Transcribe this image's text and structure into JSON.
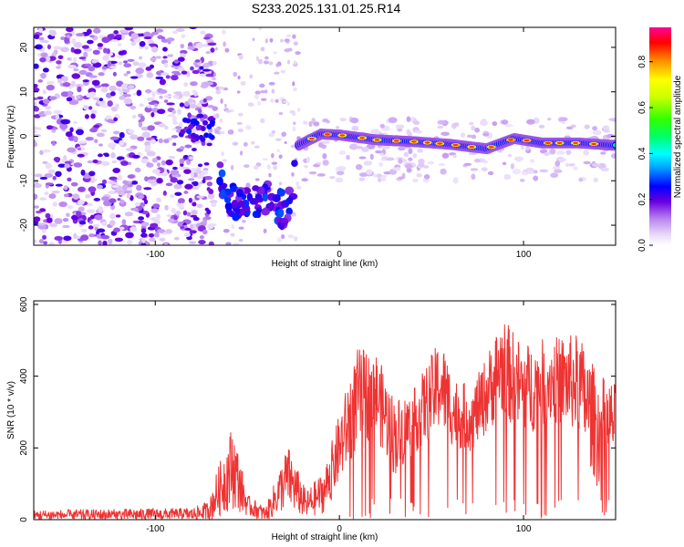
{
  "title": "S233.2025.131.01.25.R14",
  "colors": {
    "snr_line": "#ee3333",
    "frame": "#000000"
  },
  "chart_data": [
    {
      "type": "heatmap",
      "xlabel": "Height of straight line (km)",
      "ylabel": "Frequency (Hz)",
      "xlim": [
        -166,
        150
      ],
      "ylim": [
        -24.5,
        24.5
      ],
      "x_ticks": [
        -100,
        0,
        100
      ],
      "y_ticks": [
        -20,
        -10,
        0,
        10,
        20
      ],
      "colorbar": {
        "label": "Normalized spectral amplitude",
        "range": [
          0,
          0.95
        ],
        "ticks": [
          "0.0",
          "0.2",
          "0.4",
          "0.6",
          "0.8"
        ],
        "tick_values": [
          0.0,
          0.2,
          0.4,
          0.6,
          0.8
        ]
      },
      "ridge": [
        {
          "x": -82,
          "y": 1.0
        },
        {
          "x": -70,
          "y": 2.0
        },
        {
          "x": -64,
          "y": -12
        },
        {
          "x": -56,
          "y": -16
        },
        {
          "x": -47,
          "y": -14
        },
        {
          "x": -38,
          "y": -13
        },
        {
          "x": -28,
          "y": -18
        },
        {
          "x": -22,
          "y": -2
        },
        {
          "x": -10,
          "y": 0.5
        },
        {
          "x": 0,
          "y": 0.3
        },
        {
          "x": 20,
          "y": -0.8
        },
        {
          "x": 40,
          "y": -1.2
        },
        {
          "x": 60,
          "y": -1.8
        },
        {
          "x": 80,
          "y": -2.8
        },
        {
          "x": 95,
          "y": -0.5
        },
        {
          "x": 110,
          "y": -1.5
        },
        {
          "x": 130,
          "y": -1.5
        },
        {
          "x": 148,
          "y": -2.0
        }
      ]
    },
    {
      "type": "line",
      "xlabel": "Height of straight line (km)",
      "ylabel": "SNR (10 * v/v)",
      "xlim": [
        -166,
        150
      ],
      "ylim": [
        0,
        610
      ],
      "x_ticks": [
        -100,
        0,
        100
      ],
      "y_ticks": [
        0,
        200,
        400,
        600
      ],
      "envelope": [
        {
          "x": -166,
          "base": 12,
          "amp": 15
        },
        {
          "x": -80,
          "base": 15,
          "amp": 18
        },
        {
          "x": -72,
          "base": 20,
          "amp": 30
        },
        {
          "x": -58,
          "base": 150,
          "amp": 120
        },
        {
          "x": -50,
          "base": 40,
          "amp": 30
        },
        {
          "x": -40,
          "base": 15,
          "amp": 20
        },
        {
          "x": -28,
          "base": 120,
          "amp": 90
        },
        {
          "x": -18,
          "base": 40,
          "amp": 40
        },
        {
          "x": -8,
          "base": 80,
          "amp": 60
        },
        {
          "x": 0,
          "base": 200,
          "amp": 100
        },
        {
          "x": 10,
          "base": 340,
          "amp": 140
        },
        {
          "x": 20,
          "base": 350,
          "amp": 120
        },
        {
          "x": 30,
          "base": 230,
          "amp": 110
        },
        {
          "x": 40,
          "base": 270,
          "amp": 90
        },
        {
          "x": 55,
          "base": 380,
          "amp": 130
        },
        {
          "x": 62,
          "base": 300,
          "amp": 100
        },
        {
          "x": 72,
          "base": 280,
          "amp": 90
        },
        {
          "x": 80,
          "base": 350,
          "amp": 110
        },
        {
          "x": 88,
          "base": 430,
          "amp": 140
        },
        {
          "x": 100,
          "base": 360,
          "amp": 130
        },
        {
          "x": 115,
          "base": 390,
          "amp": 120
        },
        {
          "x": 130,
          "base": 380,
          "amp": 140
        },
        {
          "x": 140,
          "base": 250,
          "amp": 160
        },
        {
          "x": 150,
          "base": 280,
          "amp": 100
        }
      ]
    }
  ]
}
